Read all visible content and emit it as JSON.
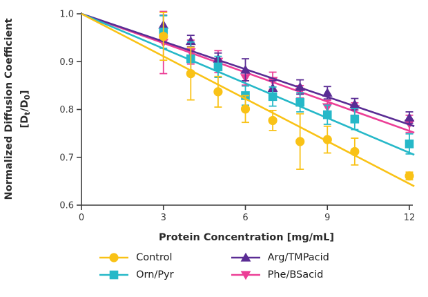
{
  "chart_data": {
    "type": "scatter",
    "title": "",
    "xlabel": "Protein Concentration [mg/mL]",
    "ylabel_line1": "Normalized Diffusion Coefficient",
    "ylabel_formula": {
      "pre": "[D",
      "sub_a": "t",
      "mid": "/D",
      "sub_b": "0",
      "post": "]"
    },
    "xlim": [
      0,
      12
    ],
    "ylim": [
      0.6,
      1.0
    ],
    "xticks": [
      "0",
      "3",
      "6",
      "9",
      "12"
    ],
    "xtick_values": [
      0,
      3,
      6,
      9,
      12
    ],
    "yticks": [
      "1.0",
      "0.9",
      "0.8",
      "0.7",
      "0.6"
    ],
    "ytick_values": [
      1.0,
      0.9,
      0.8,
      0.7,
      0.6
    ],
    "grid": false,
    "legend_position": "bottom",
    "x": [
      3,
      4,
      5,
      6,
      7,
      8,
      9,
      10,
      12
    ],
    "series": [
      {
        "name": "Control",
        "color": "#F9C216",
        "marker": "circle",
        "fit_line": {
          "intercept": 1.0,
          "slope": -0.0296
        },
        "values": [
          0.953,
          0.875,
          0.837,
          0.801,
          0.777,
          0.733,
          0.737,
          0.712,
          0.661
        ],
        "errors": [
          0.05,
          0.055,
          0.032,
          0.028,
          0.021,
          0.058,
          0.028,
          0.028,
          0.008
        ]
      },
      {
        "name": "Orn/Pyr",
        "color": "#26B8C8",
        "marker": "square",
        "fit_line": {
          "intercept": 1.0,
          "slope": -0.0242
        },
        "values": [
          0.962,
          0.906,
          0.889,
          0.829,
          0.827,
          0.815,
          0.789,
          0.78,
          0.728
        ],
        "errors": [
          0.034,
          0.035,
          0.022,
          0.02,
          0.02,
          0.02,
          0.02,
          0.022,
          0.021
        ]
      },
      {
        "name": "Arg/TMPacid",
        "color": "#5A2C94",
        "marker": "triangle-up",
        "fit_line": {
          "intercept": 1.0,
          "slope": -0.0193
        },
        "values": [
          0.977,
          0.943,
          0.906,
          0.883,
          0.845,
          0.847,
          0.835,
          0.811,
          0.783
        ],
        "errors": [
          0.02,
          0.012,
          0.012,
          0.023,
          0.015,
          0.015,
          0.013,
          0.012,
          0.012
        ]
      },
      {
        "name": "Phe/BSacid",
        "color": "#EC3E96",
        "marker": "triangle-down",
        "fit_line": {
          "intercept": 1.0,
          "slope": -0.0204
        },
        "values": [
          0.94,
          0.92,
          0.9,
          0.866,
          0.86,
          0.837,
          0.805,
          0.801,
          0.77
        ],
        "errors": [
          0.065,
          0.025,
          0.023,
          0.015,
          0.018,
          0.013,
          0.014,
          0.013,
          0.018
        ]
      }
    ]
  }
}
